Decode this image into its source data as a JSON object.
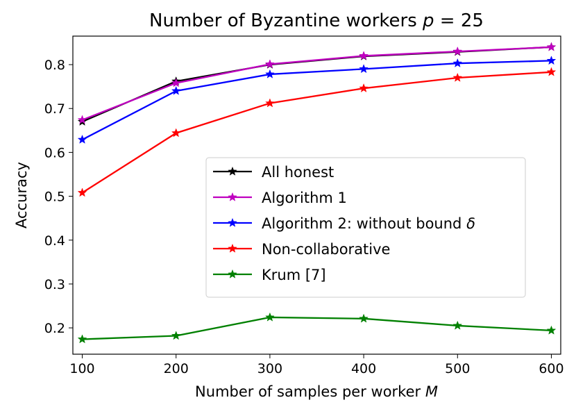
{
  "chart_data": {
    "type": "line",
    "title": "Number of Byzantine workers p = 25",
    "title_main": "Number of Byzantine workers ",
    "title_var": "p",
    "title_rest": " = 25",
    "xlabel_main": "Number of samples per worker ",
    "xlabel_var": "M",
    "ylabel": "Accuracy",
    "xlim": [
      90,
      610
    ],
    "ylim": [
      0.14,
      0.865
    ],
    "xticks": [
      100,
      200,
      300,
      400,
      500,
      600
    ],
    "yticks": [
      0.2,
      0.3,
      0.4,
      0.5,
      0.6,
      0.7,
      0.8
    ],
    "x": [
      100,
      200,
      300,
      400,
      500,
      600
    ],
    "legend_position": "center-right",
    "grid": false,
    "series": [
      {
        "name": "All honest",
        "color": "#000000",
        "values": [
          0.67,
          0.762,
          0.8,
          0.819,
          0.829,
          0.84
        ]
      },
      {
        "name": "Algorithm 1",
        "color": "#bf00bf",
        "values": [
          0.674,
          0.758,
          0.801,
          0.82,
          0.83,
          0.84
        ]
      },
      {
        "name": "Algorithm 2: without bound δ",
        "color": "#0000ff",
        "values": [
          0.629,
          0.74,
          0.778,
          0.79,
          0.803,
          0.809
        ]
      },
      {
        "name": "Non-collaborative",
        "color": "#ff0000",
        "values": [
          0.508,
          0.644,
          0.712,
          0.746,
          0.77,
          0.783
        ]
      },
      {
        "name": "Krum [7]",
        "color": "#008000",
        "values": [
          0.174,
          0.182,
          0.224,
          0.221,
          0.205,
          0.194
        ]
      }
    ]
  }
}
